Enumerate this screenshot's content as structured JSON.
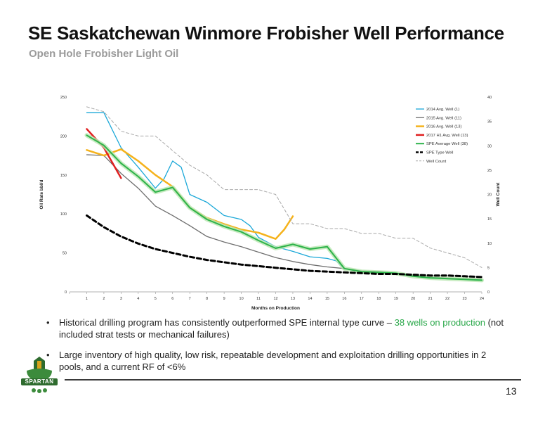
{
  "slide": {
    "title": "SE Saskatchewan Winmore Frobisher Well Performance",
    "subtitle": "Open Hole Frobisher Light Oil",
    "page_number": "13",
    "logo_text": "SPARTAN"
  },
  "bullets": [
    {
      "text_before": "Historical drilling program has consistently outperformed SPE internal type curve – ",
      "highlight": "38 wells on production",
      "text_after": " (not included strat tests or mechanical failures)"
    },
    {
      "text_before": "Large inventory of high quality, low risk, repeatable development and exploitation drilling opportunities in 2 pools, and a current RF of <6%",
      "highlight": "",
      "text_after": ""
    }
  ],
  "colors": {
    "highlight": "#2aa84a",
    "footer_line": "#3a3a3a"
  },
  "chart_data": {
    "type": "line",
    "xlabel": "Months on Production",
    "ylabel": "Oil Rate bbl/d",
    "y2label": "Well Count",
    "x": [
      1,
      2,
      3,
      4,
      5,
      6,
      7,
      8,
      9,
      10,
      11,
      12,
      13,
      14,
      15,
      16,
      17,
      18,
      19,
      20,
      21,
      22,
      23,
      24
    ],
    "xlim": [
      0,
      24
    ],
    "ylim": [
      0,
      250
    ],
    "y2lim": [
      0,
      40
    ],
    "yticks": [
      0,
      50,
      100,
      150,
      200,
      250
    ],
    "y2ticks": [
      0,
      5,
      10,
      15,
      20,
      25,
      30,
      35,
      40
    ],
    "legend_position": "top-right",
    "series": [
      {
        "name": "2014 Avg. Well (1)",
        "color": "#1ba8d8",
        "dash": "solid",
        "width": 1.3,
        "axis": "left",
        "points": [
          [
            1,
            230
          ],
          [
            2,
            230
          ],
          [
            3,
            185
          ],
          [
            4,
            160
          ],
          [
            5,
            133
          ],
          [
            5.5,
            145
          ],
          [
            6,
            168
          ],
          [
            6.5,
            160
          ],
          [
            7,
            125
          ],
          [
            8,
            115
          ],
          [
            9,
            98
          ],
          [
            10,
            93
          ],
          [
            10.5,
            85
          ],
          [
            11,
            70
          ],
          [
            12,
            58
          ],
          [
            13,
            52
          ],
          [
            14,
            45
          ],
          [
            15,
            43
          ],
          [
            15.5,
            40
          ],
          [
            16,
            30
          ],
          [
            17,
            26
          ],
          [
            18,
            25
          ],
          [
            19,
            24
          ],
          [
            20,
            20
          ],
          [
            21,
            18
          ],
          [
            22,
            17
          ],
          [
            23,
            16
          ],
          [
            24,
            15
          ]
        ]
      },
      {
        "name": "2015 Avg. Well (11)",
        "color": "#6e6e6e",
        "dash": "solid",
        "width": 1.3,
        "axis": "left",
        "points": [
          [
            1,
            176
          ],
          [
            2,
            175
          ],
          [
            3,
            152
          ],
          [
            4,
            133
          ],
          [
            5,
            110
          ],
          [
            6,
            98
          ],
          [
            7,
            85
          ],
          [
            8,
            71
          ],
          [
            9,
            64
          ],
          [
            10,
            58
          ],
          [
            11,
            51
          ],
          [
            12,
            44
          ],
          [
            13,
            39
          ],
          [
            14,
            35
          ],
          [
            15,
            32
          ],
          [
            16,
            30
          ],
          [
            17,
            27
          ],
          [
            18,
            26
          ],
          [
            19,
            24
          ],
          [
            20,
            21
          ],
          [
            21,
            19
          ],
          [
            22,
            18
          ],
          [
            23,
            17
          ],
          [
            24,
            16
          ]
        ]
      },
      {
        "name": "2016 Avg. Well (13)",
        "color": "#f5b21b",
        "dash": "solid",
        "width": 2.5,
        "axis": "left",
        "points": [
          [
            1,
            182
          ],
          [
            2,
            175
          ],
          [
            3,
            183
          ],
          [
            4,
            168
          ],
          [
            5,
            150
          ],
          [
            6,
            135
          ],
          [
            7,
            108
          ],
          [
            8,
            95
          ],
          [
            9,
            87
          ],
          [
            10,
            80
          ],
          [
            11,
            76
          ],
          [
            12,
            68
          ],
          [
            12.5,
            80
          ],
          [
            13,
            97
          ]
        ]
      },
      {
        "name": "2017 H1 Avg. Well (13)",
        "color": "#e02020",
        "dash": "solid",
        "width": 2.5,
        "axis": "left",
        "points": [
          [
            1,
            209
          ],
          [
            2,
            185
          ],
          [
            3,
            146
          ]
        ]
      },
      {
        "name": "SPE Average Well (38)",
        "color": "#2db34a",
        "dash": "solid",
        "width": 2,
        "axis": "left",
        "points": [
          [
            1,
            201
          ],
          [
            2,
            188
          ],
          [
            3,
            165
          ],
          [
            4,
            148
          ],
          [
            5,
            128
          ],
          [
            6,
            134
          ],
          [
            7,
            108
          ],
          [
            8,
            93
          ],
          [
            9,
            84
          ],
          [
            10,
            77
          ],
          [
            11,
            66
          ],
          [
            12,
            56
          ],
          [
            13,
            61
          ],
          [
            14,
            55
          ],
          [
            15,
            58
          ],
          [
            16,
            30
          ],
          [
            17,
            26
          ],
          [
            18,
            25
          ],
          [
            19,
            24
          ],
          [
            20,
            20
          ],
          [
            21,
            18
          ],
          [
            22,
            17
          ],
          [
            23,
            16
          ],
          [
            24,
            15
          ]
        ]
      },
      {
        "name": "SPE Type Well",
        "color": "#000000",
        "dash": "6,4",
        "width": 3,
        "axis": "left",
        "points": [
          [
            1,
            98
          ],
          [
            2,
            83
          ],
          [
            3,
            71
          ],
          [
            4,
            62
          ],
          [
            5,
            55
          ],
          [
            6,
            50
          ],
          [
            7,
            45
          ],
          [
            8,
            41
          ],
          [
            9,
            38
          ],
          [
            10,
            35
          ],
          [
            11,
            33
          ],
          [
            12,
            31
          ],
          [
            13,
            29
          ],
          [
            14,
            27
          ],
          [
            15,
            26
          ],
          [
            16,
            25
          ],
          [
            17,
            24
          ],
          [
            18,
            23
          ],
          [
            19,
            23
          ],
          [
            20,
            22
          ],
          [
            21,
            21
          ],
          [
            22,
            21
          ],
          [
            23,
            20
          ],
          [
            24,
            19
          ]
        ]
      },
      {
        "name": "Well Count",
        "color": "#a9a9a9",
        "dash": "4,3",
        "width": 1,
        "axis": "right",
        "points": [
          [
            1,
            38
          ],
          [
            2,
            37
          ],
          [
            3,
            33
          ],
          [
            4,
            32
          ],
          [
            5,
            32
          ],
          [
            6,
            29
          ],
          [
            7,
            26
          ],
          [
            8,
            24
          ],
          [
            9,
            21
          ],
          [
            10,
            21
          ],
          [
            11,
            21
          ],
          [
            12,
            20
          ],
          [
            13,
            14
          ],
          [
            14,
            14
          ],
          [
            15,
            13
          ],
          [
            16,
            13
          ],
          [
            17,
            12
          ],
          [
            18,
            12
          ],
          [
            19,
            11
          ],
          [
            20,
            11
          ],
          [
            21,
            9
          ],
          [
            22,
            8
          ],
          [
            23,
            7
          ],
          [
            24,
            5
          ]
        ]
      }
    ]
  }
}
